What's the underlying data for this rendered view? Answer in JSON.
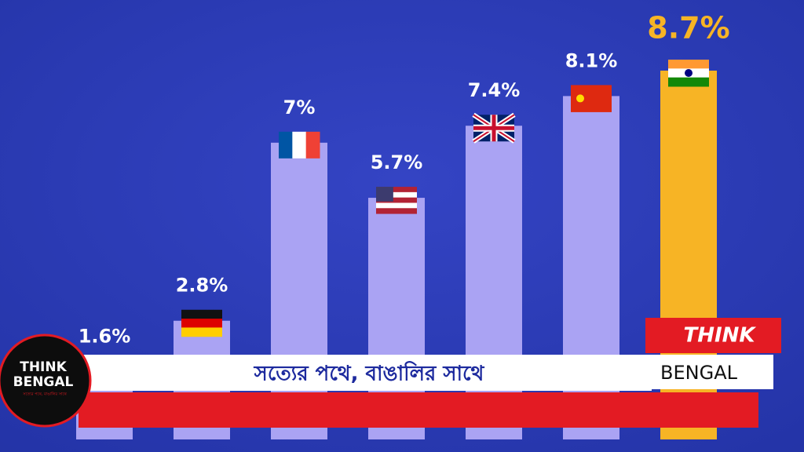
{
  "chart_data": {
    "type": "bar",
    "values": [
      1.6,
      2.8,
      7,
      5.7,
      7.4,
      8.1,
      8.7
    ],
    "value_labels": [
      "1.6%",
      "2.8%",
      "7%",
      "5.7%",
      "7.4%",
      "8.1%",
      "8.7%"
    ],
    "color": "#aaa3f3",
    "highlight_color": "#f7b425"
  },
  "banner": {
    "tagline": "সত্যের পথে, বাঙালির সাথে",
    "brand_top": "THINK",
    "brand_bottom": "BENGAL"
  },
  "logo": {
    "top": "THINK",
    "bottom": "BENGAL",
    "tagline": "সত্যের পথে, বাঙালির সাথে"
  }
}
